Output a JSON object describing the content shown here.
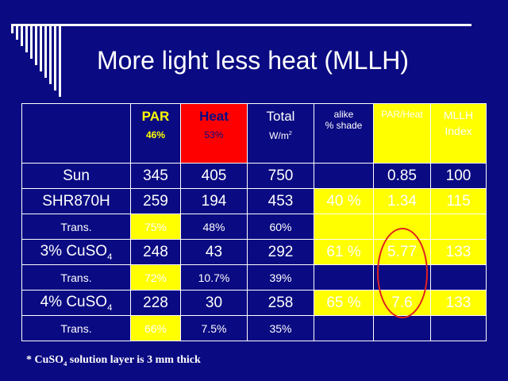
{
  "slide": {
    "title": "More light less heat (MLLH)",
    "footnote_prefix": "* CuSO",
    "footnote_sub": "4",
    "footnote_suffix": " solution layer is 3 mm thick"
  },
  "table": {
    "header": {
      "par": "PAR",
      "par_pct": "46%",
      "heat": "Heat",
      "heat_pct": "53%",
      "total": "Total",
      "total_unit": "W/m",
      "total_unit_sup": "2",
      "alike_line1": "alike",
      "alike_line2": "% shade",
      "par_heat": "PAR/Heat",
      "mllh_line1": "MLLH",
      "mllh_line2": "Index"
    },
    "rows": {
      "sun": {
        "label": "Sun",
        "par": "345",
        "heat": "405",
        "total": "750",
        "shade": "",
        "ratio": "0.85",
        "index": "100"
      },
      "shr": {
        "label": "SHR870H",
        "par": "259",
        "heat": "194",
        "total": "453",
        "shade": "40 %",
        "ratio": "1.34",
        "index": "115"
      },
      "shr_trans": {
        "label": "Trans.",
        "par": "75%",
        "heat": "48%",
        "total": "60%"
      },
      "cu3": {
        "label_prefix": "3% CuSO",
        "label_sub": "4",
        "par": "248",
        "heat": "43",
        "total": "292",
        "shade": "61 %",
        "ratio": "5.77",
        "index": "133"
      },
      "cu3_trans": {
        "label": "Trans.",
        "par": "72%",
        "heat": "10.7%",
        "total": "39%"
      },
      "cu4": {
        "label_prefix": "4% CuSO",
        "label_sub": "4",
        "par": "228",
        "heat": "30",
        "total": "258",
        "shade": "65 %",
        "ratio": "7.6",
        "index": "133"
      },
      "cu4_trans": {
        "label": "Trans.",
        "par": "66%",
        "heat": "7.5%",
        "total": "35%"
      }
    }
  },
  "colors": {
    "background": "#0a0a82",
    "highlight_yellow": "#ffff00",
    "highlight_red": "#ff0000",
    "circle": "#e02020"
  }
}
